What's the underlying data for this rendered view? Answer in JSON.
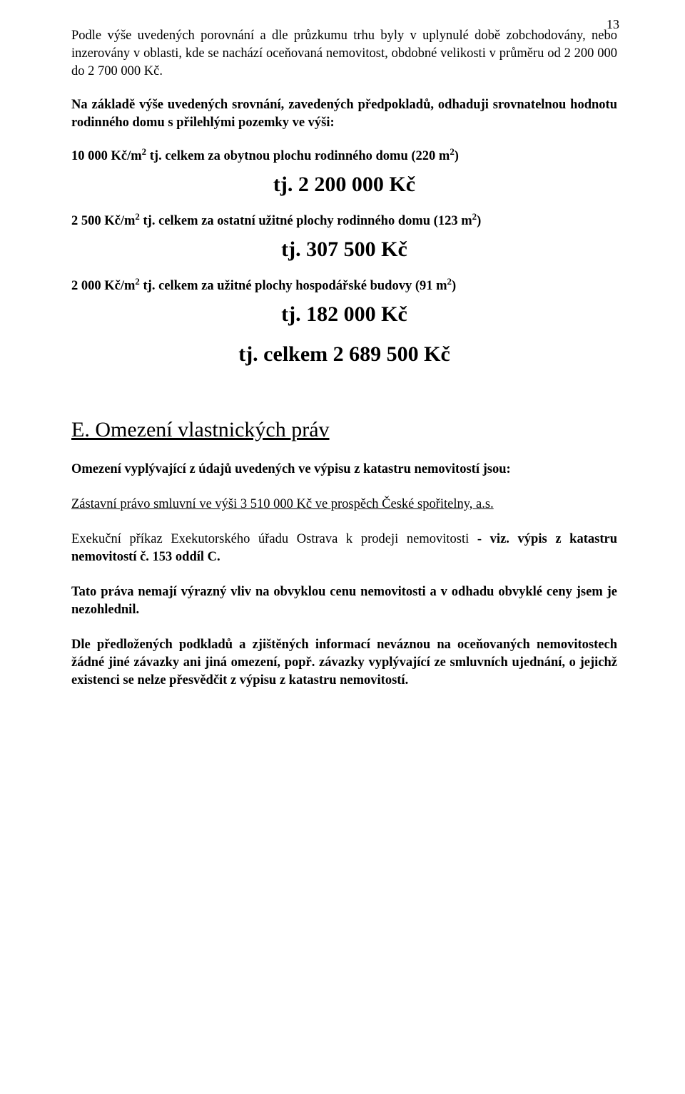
{
  "pageNumber": "13",
  "paragraphs": {
    "intro": "Podle výše uvedených porovnání a dle průzkumu trhu byly v uplynulé době zobchodovány, nebo inzerovány v oblasti, kde se nachází oceňovaná nemovitost, obdobné velikosti v průměru od 2 200 000 do 2 700 000 Kč.",
    "basis": "Na základě výše uvedených srovnání, zavedených předpokladů, odhaduji srovnatelnou hodnotu rodinného domu s přilehlými pozemky ve výši:"
  },
  "calc": {
    "line1_a": "10 000 Kč/m",
    "line1_b": " tj. celkem za obytnou plochu rodinného domu (220 m",
    "line1_c": ")",
    "result1": "tj. 2 200 000 Kč",
    "line2_a": "2 500 Kč/m",
    "line2_b": " tj. celkem za ostatní užitné plochy rodinného domu (123 m",
    "line2_c": ")",
    "result2": "tj. 307 500 Kč",
    "line3_a": "2 000 Kč/m",
    "line3_b": " tj. celkem za užitné plochy hospodářské budovy (91 m",
    "line3_c": ")",
    "result3": "tj. 182 000 Kč",
    "total": "tj. celkem 2 689 500 Kč"
  },
  "sup": "2",
  "sectionE": {
    "heading": "E. Omezení vlastnických práv",
    "p1": "Omezení vyplývající z údajů uvedených ve výpisu z katastru nemovitostí jsou:",
    "p2": "Zástavní právo smluvní ve výši 3 510 000 Kč ve prospěch České spořitelny, a.s.",
    "p3a": "Exekuční příkaz Exekutorského úřadu Ostrava k prodeji nemovitosti ",
    "p3b": "- viz. výpis z katastru nemovitostí č. 153 oddíl C.",
    "p4": "Tato práva nemají výrazný vliv na obvyklou cenu nemovitosti a v odhadu obvyklé ceny jsem je nezohlednil.",
    "p5": "Dle předložených podkladů a zjištěných informací neváznou na oceňovaných nemovitostech žádné jiné závazky ani jiná omezení, popř. závazky vyplývající ze smluvních ujednání, o jejichž existenci se nelze přesvědčit z výpisu z katastru nemovitostí."
  }
}
